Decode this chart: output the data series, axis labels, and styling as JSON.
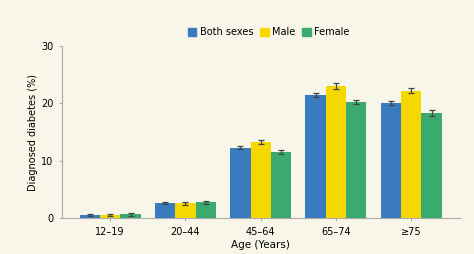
{
  "categories": [
    "12–19",
    "20–44",
    "45–64",
    "65–74",
    "≥75"
  ],
  "both_sexes": [
    0.6,
    2.7,
    12.3,
    21.4,
    20.0
  ],
  "male": [
    0.6,
    2.6,
    13.3,
    23.0,
    22.2
  ],
  "female": [
    0.7,
    2.8,
    11.5,
    20.2,
    18.3
  ],
  "both_sexes_err": [
    0.15,
    0.2,
    0.3,
    0.35,
    0.35
  ],
  "male_err": [
    0.2,
    0.25,
    0.4,
    0.45,
    0.45
  ],
  "female_err": [
    0.2,
    0.25,
    0.35,
    0.4,
    0.45
  ],
  "color_both": "#3a7bbf",
  "color_male": "#f5d800",
  "color_female": "#3aaa6e",
  "ylabel": "Diagnosed diabetes (%)",
  "xlabel": "Age (Years)",
  "ylim": [
    0,
    30
  ],
  "yticks": [
    0,
    10,
    20,
    30
  ],
  "legend_labels": [
    "Both sexes",
    "Male",
    "Female"
  ],
  "background_color": "#f7f6e8",
  "bar_width": 0.27,
  "capsize": 2,
  "elinewidth": 0.9,
  "ecolor": "#444444"
}
